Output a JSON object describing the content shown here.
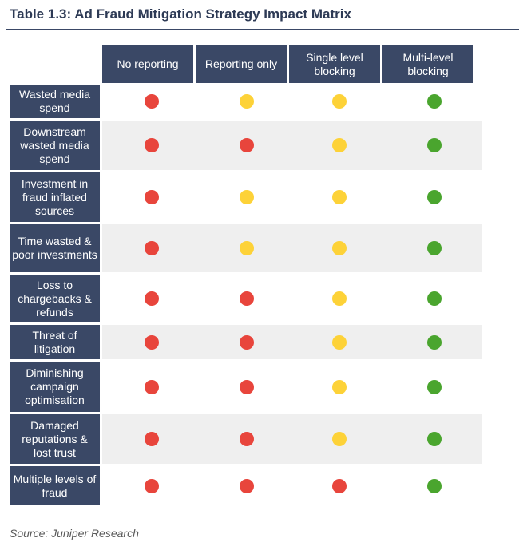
{
  "title": "Table 1.3: Ad Fraud Mitigation Strategy Impact Matrix",
  "columns": [
    "No reporting",
    "Reporting only",
    "Single level blocking",
    "Multi-level blocking"
  ],
  "rows": [
    {
      "label": "Wasted media spend",
      "ratings": [
        "red",
        "yellow",
        "yellow",
        "green"
      ]
    },
    {
      "label": "Downstream wasted media spend",
      "ratings": [
        "red",
        "red",
        "yellow",
        "green"
      ]
    },
    {
      "label": "Investment in fraud inflated sources",
      "ratings": [
        "red",
        "yellow",
        "yellow",
        "green"
      ]
    },
    {
      "label": "Time wasted & poor investments",
      "ratings": [
        "red",
        "yellow",
        "yellow",
        "green"
      ]
    },
    {
      "label": "Loss to chargebacks & refunds",
      "ratings": [
        "red",
        "red",
        "yellow",
        "green"
      ]
    },
    {
      "label": "Threat of litigation",
      "ratings": [
        "red",
        "red",
        "yellow",
        "green"
      ]
    },
    {
      "label": "Diminishing campaign optimisation",
      "ratings": [
        "red",
        "red",
        "yellow",
        "green"
      ]
    },
    {
      "label": "Damaged reputations & lost trust",
      "ratings": [
        "red",
        "red",
        "yellow",
        "green"
      ]
    },
    {
      "label": "Multiple levels of fraud",
      "ratings": [
        "red",
        "red",
        "red",
        "green"
      ]
    }
  ],
  "colors": {
    "header_bg": "#3a4866",
    "band_bg": "#efefef",
    "red": "#e8453c",
    "yellow": "#fdd238",
    "green": "#4aa52e"
  },
  "source": "Source: Juniper Research"
}
